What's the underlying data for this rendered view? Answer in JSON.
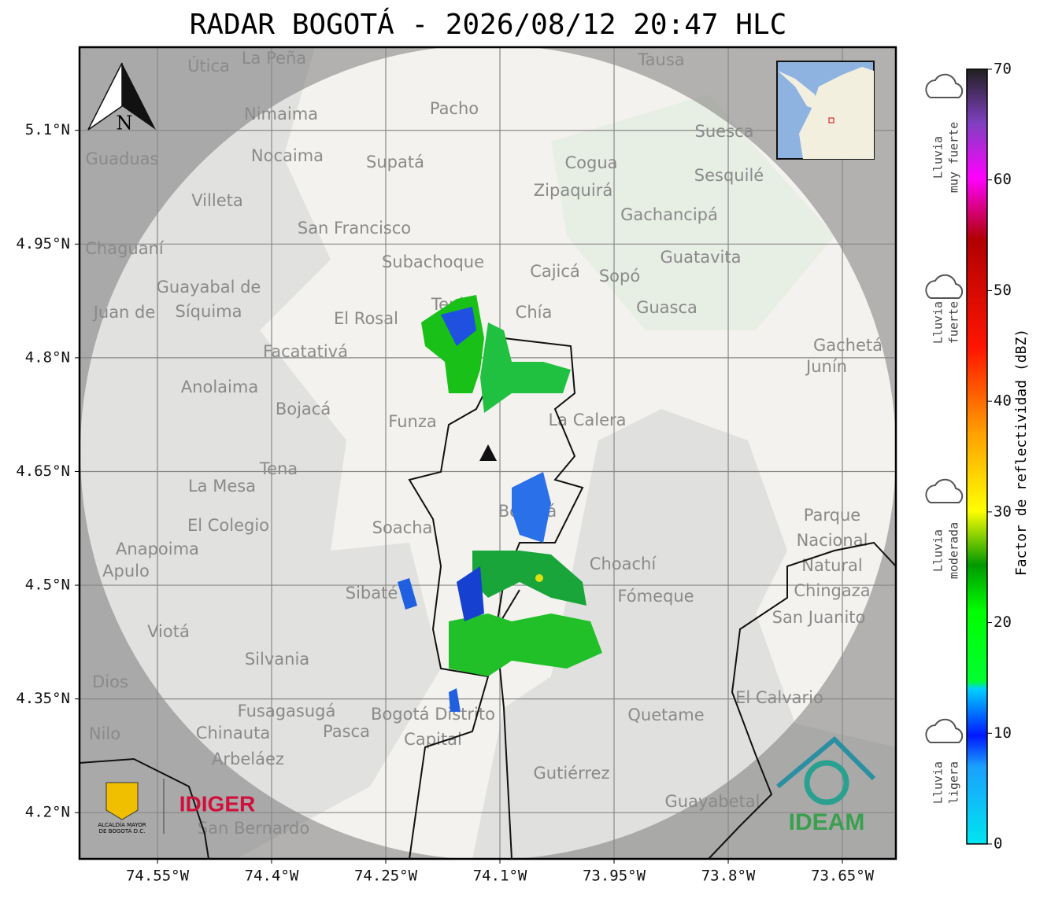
{
  "map": {
    "title": "RADAR BOGOTÁ - 2026/08/12 20:47 HLC",
    "xlim": [
      -74.6524,
      -73.5797
    ],
    "ylim": [
      4.139,
      5.2097
    ],
    "lat_ticks": [
      {
        "value": 5.1,
        "label": "5.1°N"
      },
      {
        "value": 4.95,
        "label": "4.95°N"
      },
      {
        "value": 4.8,
        "label": "4.8°N"
      },
      {
        "value": 4.65,
        "label": "4.65°N"
      },
      {
        "value": 4.5,
        "label": "4.5°N"
      },
      {
        "value": 4.35,
        "label": "4.35°N"
      },
      {
        "value": 4.2,
        "label": "4.2°N"
      }
    ],
    "lon_ticks": [
      {
        "value": -74.55,
        "label": "74.55°W"
      },
      {
        "value": -74.4,
        "label": "74.4°W"
      },
      {
        "value": -74.25,
        "label": "74.25°W"
      },
      {
        "value": -74.1,
        "label": "74.1°W"
      },
      {
        "value": -73.95,
        "label": "73.95°W"
      },
      {
        "value": -73.8,
        "label": "73.8°W"
      },
      {
        "value": -73.65,
        "label": "73.65°W"
      }
    ],
    "north": "N",
    "places": [
      "La Peña",
      "Útica",
      "Tausa",
      "Pacho",
      "Nimaima",
      "Suesca",
      "Guaduas",
      "Nocaima",
      "Supatá",
      "Cogua",
      "Zipaquirá",
      "Sesquilé",
      "Villeta",
      "Gachancipá",
      "San Francisco",
      "Chaguaní",
      "Guatavita",
      "Subachoque",
      "Cajicá",
      "Sopó",
      "Guayabal de",
      "Síquima",
      "Tenjo",
      "Chía",
      "Guasca",
      "El Rosal",
      "Juan de",
      "Facatativá",
      "Gachetá",
      "Junín",
      "Anolaima",
      "Bojacá",
      "Funza",
      "La Calera",
      "Tena",
      "La Mesa",
      "Bogotá",
      "Parque",
      "Nacional",
      "Natural",
      "Chingaza",
      "El Colegio",
      "Soacha",
      "Anapoima",
      "Apulo",
      "Choachí",
      "Sibaté",
      "Fómeque",
      "San Juanito",
      "Viotá",
      "Silvania",
      "El Calvario",
      "Fusagasugá",
      "Bogotá Distrito",
      "Capital",
      "Quetame",
      "Chinauta",
      "Pasca",
      "Arbeláez",
      "Gutiérrez",
      "Guayabetal",
      "San Bernardo",
      "Dios",
      "Nilo"
    ],
    "logos": {
      "alcaldia": "ALCALDÍA MAYOR",
      "alcaldia2": "DE BOGOTÁ D.C.",
      "idiger": "IDIGER",
      "ideam": "IDEAM"
    }
  },
  "colorbar": {
    "label": "Factor de reflectividad (dBZ)",
    "lim": [
      0,
      70
    ],
    "ticks": [
      0,
      10,
      20,
      30,
      40,
      50,
      60,
      70
    ],
    "levels": [
      [
        "Lluvia",
        "muy fuerte"
      ],
      [
        "Lluvia",
        "fuerte"
      ],
      [
        "Lluvia",
        "moderada"
      ],
      [
        "Lluvia",
        "ligera"
      ]
    ]
  }
}
